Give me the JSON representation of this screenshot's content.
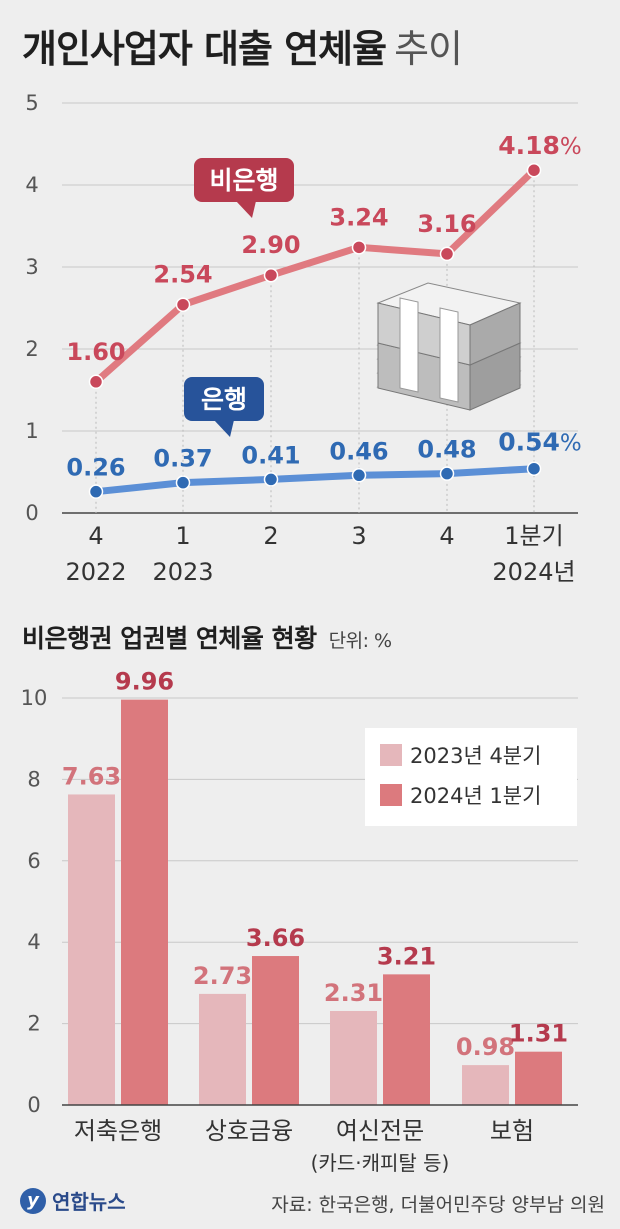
{
  "title": "개인사업자 대출 연체율",
  "title_suffix": "추이",
  "subtitle": "비은행권 업권별 연체율 현황",
  "unit": "단위: %",
  "source": "자료: 한국은행, 더불어민주당 양부남 의원",
  "logo": "연합뉴스",
  "colors": {
    "nonbank": "#c9485b",
    "nonbank_line": "#e07a80",
    "bank": "#2f6ab3",
    "bank_line": "#5b8fd6",
    "bar_2023": "#e5b7bb",
    "bar_2024": "#dc7a7e"
  },
  "chart_data": [
    {
      "type": "line",
      "categories": [
        "4",
        "1",
        "2",
        "3",
        "4",
        "1분기"
      ],
      "category_years": [
        "2022",
        "2023",
        "",
        "",
        "",
        "2024년"
      ],
      "ylim": [
        0,
        5
      ],
      "yticks": [
        "0",
        "1",
        "2",
        "3",
        "4",
        "5"
      ],
      "series": [
        {
          "name": "비은행",
          "values": [
            1.6,
            2.54,
            2.9,
            3.24,
            3.16,
            4.18
          ],
          "labels": [
            "1.60",
            "2.54",
            "2.90",
            "3.24",
            "3.16",
            "4.18"
          ]
        },
        {
          "name": "은행",
          "values": [
            0.26,
            0.37,
            0.41,
            0.46,
            0.48,
            0.54
          ],
          "labels": [
            "0.26",
            "0.37",
            "0.41",
            "0.46",
            "0.48",
            "0.54"
          ]
        }
      ],
      "last_label_suffix": "%"
    },
    {
      "type": "bar",
      "categories": [
        "저축은행",
        "상호금융",
        "여신전문",
        "보험"
      ],
      "category_notes": [
        "",
        "",
        "(카드·캐피탈 등)",
        ""
      ],
      "ylim": [
        0,
        10
      ],
      "yticks": [
        "0",
        "2",
        "4",
        "6",
        "8",
        "10"
      ],
      "series": [
        {
          "name": "2023년 4분기",
          "values": [
            7.63,
            2.73,
            2.31,
            0.98
          ],
          "labels": [
            "7.63",
            "2.73",
            "2.31",
            "0.98"
          ]
        },
        {
          "name": "2024년 1분기",
          "values": [
            9.96,
            3.66,
            3.21,
            1.31
          ],
          "labels": [
            "9.96",
            "3.66",
            "3.21",
            "1.31"
          ]
        }
      ]
    }
  ]
}
